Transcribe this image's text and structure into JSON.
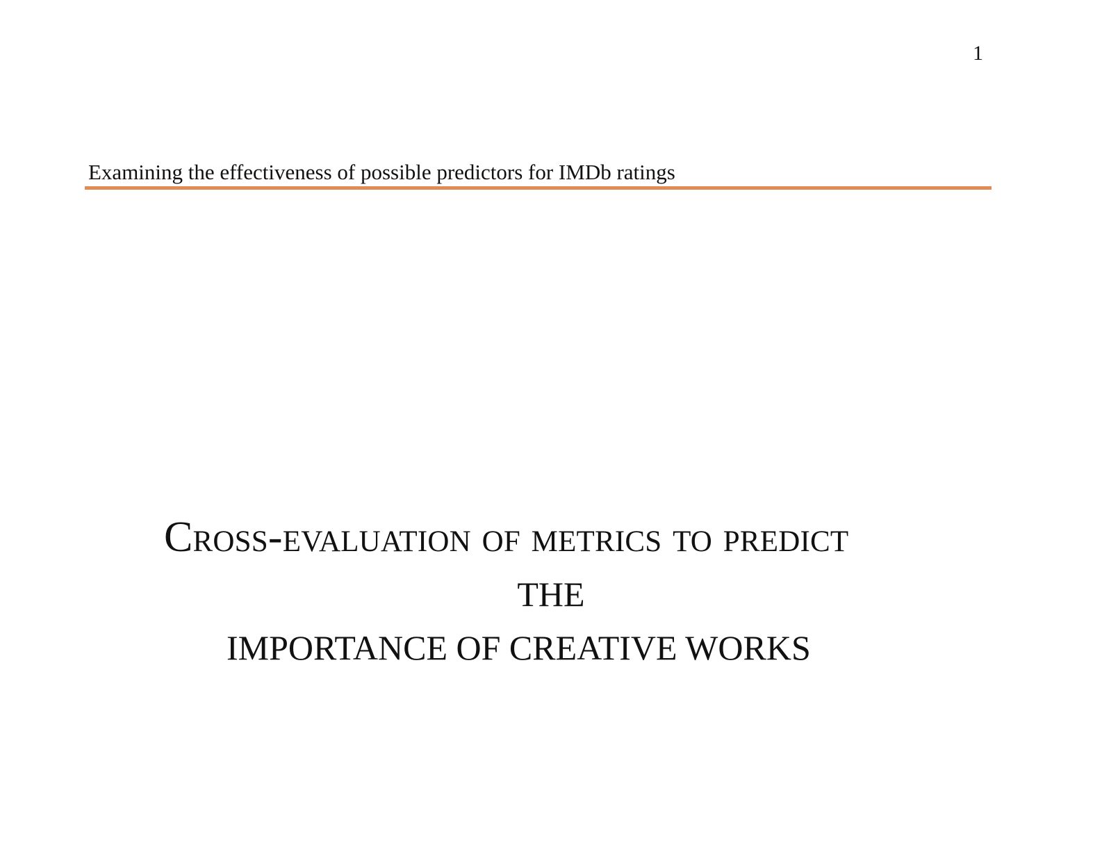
{
  "page": {
    "number": "1"
  },
  "header": {
    "running_title": "Examining the effectiveness of possible predictors for IMDb ratings",
    "rule_color": "#e08c54"
  },
  "title": {
    "line1": "Cross-evaluation of metrics to predict",
    "line2": "THE",
    "line3": "IMPORTANCE OF CREATIVE WORKS"
  }
}
